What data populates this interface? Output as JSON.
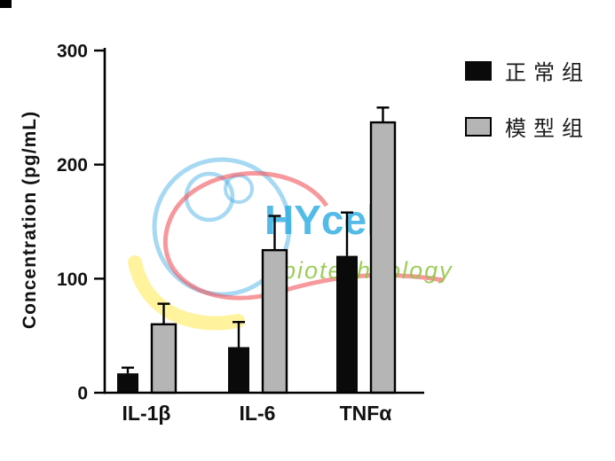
{
  "chart_data": {
    "type": "bar",
    "title": "",
    "categories": [
      "IL-1β",
      "IL-6",
      "TNFα"
    ],
    "series": [
      {
        "name": "正常组",
        "color": "#0a0a0a",
        "values": [
          17,
          40,
          120
        ],
        "errors_upper": [
          5,
          22,
          38
        ]
      },
      {
        "name": "模型组",
        "color": "#b5b5b5",
        "values": [
          60,
          125,
          237
        ],
        "errors_upper": [
          18,
          30,
          13
        ]
      }
    ],
    "xlabel": "",
    "ylabel": "Concentration (pg/mL)",
    "ylim": [
      0,
      300
    ],
    "yticks": [
      0,
      100,
      200,
      300
    ],
    "grid": false,
    "legend_position": "top-right",
    "error_bars": "sd-upper-only"
  },
  "watermark": {
    "brand": "HYcell",
    "subtext": "biotechnology",
    "brand_color": "#29abe2",
    "subtext_color": "#8dc63f",
    "swirl_blue": "#4fb3e8",
    "swirl_red": "#f2545b",
    "swirl_yellow": "#ffe94e"
  },
  "colors": {
    "axis": "#000000",
    "text": "#111111",
    "background": "#ffffff"
  }
}
